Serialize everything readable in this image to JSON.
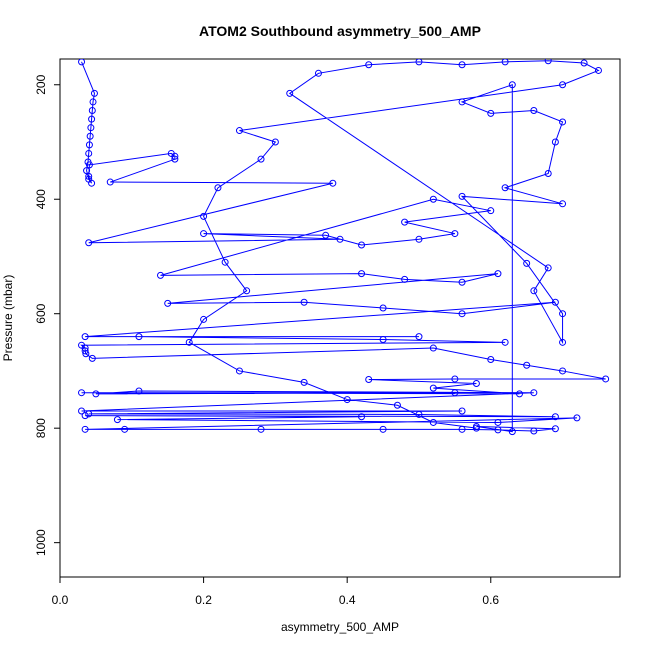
{
  "chart_data": {
    "type": "scatter",
    "title": "ATOM2 Southbound asymmetry_500_AMP",
    "xlabel": "asymmetry_500_AMP",
    "ylabel": "Pressure (mbar)",
    "xlim": [
      0.0,
      0.78
    ],
    "ylim": [
      1060,
      155
    ],
    "y_reversed": true,
    "x_ticks": [
      0.0,
      0.2,
      0.4,
      0.6
    ],
    "x_tick_labels": [
      "0.0",
      "0.2",
      "0.4",
      "0.6"
    ],
    "y_ticks": [
      200,
      400,
      600,
      800,
      1000
    ],
    "y_tick_labels": [
      "200",
      "400",
      "600",
      "800",
      "1000"
    ],
    "grid": false,
    "legend": "none",
    "color": "#0000ff",
    "marker": "open-circle",
    "lines_connect_points": true,
    "series": [
      {
        "points": [
          [
            0.03,
            160
          ],
          [
            0.048,
            215
          ],
          [
            0.046,
            230
          ],
          [
            0.045,
            245
          ],
          [
            0.044,
            260
          ],
          [
            0.043,
            275
          ],
          [
            0.042,
            290
          ],
          [
            0.041,
            305
          ],
          [
            0.04,
            320
          ],
          [
            0.039,
            335
          ],
          [
            0.037,
            350
          ],
          [
            0.04,
            365
          ],
          [
            0.044,
            372
          ],
          [
            0.04,
            360
          ],
          [
            0.041,
            340
          ],
          [
            0.155,
            320
          ],
          [
            0.16,
            325
          ],
          [
            0.16,
            330
          ],
          [
            0.07,
            370
          ],
          [
            0.38,
            372
          ],
          [
            0.04,
            476
          ],
          [
            0.39,
            470
          ],
          [
            0.2,
            460
          ],
          [
            0.37,
            463
          ],
          [
            0.42,
            480
          ],
          [
            0.5,
            470
          ],
          [
            0.55,
            460
          ],
          [
            0.48,
            440
          ],
          [
            0.6,
            420
          ],
          [
            0.52,
            400
          ],
          [
            0.14,
            533
          ],
          [
            0.42,
            530
          ],
          [
            0.48,
            540
          ],
          [
            0.56,
            545
          ],
          [
            0.61,
            530
          ],
          [
            0.15,
            582
          ],
          [
            0.34,
            580
          ],
          [
            0.45,
            590
          ],
          [
            0.56,
            600
          ],
          [
            0.69,
            580
          ],
          [
            0.035,
            640
          ],
          [
            0.5,
            640
          ],
          [
            0.11,
            640
          ],
          [
            0.45,
            645
          ],
          [
            0.62,
            650
          ],
          [
            0.03,
            655
          ],
          [
            0.035,
            660
          ],
          [
            0.035,
            665
          ],
          [
            0.036,
            670
          ],
          [
            0.045,
            678
          ],
          [
            0.52,
            660
          ],
          [
            0.6,
            680
          ],
          [
            0.65,
            690
          ],
          [
            0.7,
            700
          ],
          [
            0.76,
            714
          ],
          [
            0.55,
            714
          ],
          [
            0.43,
            715
          ],
          [
            0.58,
            722
          ],
          [
            0.52,
            730
          ],
          [
            0.64,
            740
          ],
          [
            0.03,
            738
          ],
          [
            0.55,
            738
          ],
          [
            0.05,
            740
          ],
          [
            0.11,
            735
          ],
          [
            0.66,
            738
          ],
          [
            0.03,
            770
          ],
          [
            0.56,
            770
          ],
          [
            0.04,
            775
          ],
          [
            0.5,
            776
          ],
          [
            0.69,
            780
          ],
          [
            0.035,
            778
          ],
          [
            0.42,
            780
          ],
          [
            0.08,
            785
          ],
          [
            0.61,
            790
          ],
          [
            0.72,
            782
          ],
          [
            0.035,
            802
          ],
          [
            0.09,
            802
          ],
          [
            0.28,
            802
          ],
          [
            0.45,
            802
          ],
          [
            0.56,
            802
          ],
          [
            0.61,
            803
          ],
          [
            0.66,
            805
          ],
          [
            0.69,
            801
          ],
          [
            0.58,
            797
          ],
          [
            0.63,
            806
          ],
          [
            0.63,
            200
          ],
          [
            0.56,
            230
          ],
          [
            0.6,
            250
          ],
          [
            0.66,
            245
          ],
          [
            0.7,
            265
          ],
          [
            0.69,
            300
          ],
          [
            0.68,
            355
          ],
          [
            0.62,
            380
          ],
          [
            0.7,
            408
          ],
          [
            0.56,
            395
          ],
          [
            0.65,
            512
          ],
          [
            0.7,
            600
          ],
          [
            0.7,
            650
          ],
          [
            0.66,
            560
          ],
          [
            0.68,
            520
          ],
          [
            0.32,
            215
          ],
          [
            0.36,
            180
          ],
          [
            0.43,
            165
          ],
          [
            0.5,
            160
          ],
          [
            0.56,
            165
          ],
          [
            0.62,
            160
          ],
          [
            0.68,
            158
          ],
          [
            0.73,
            162
          ],
          [
            0.75,
            175
          ],
          [
            0.7,
            200
          ],
          [
            0.25,
            280
          ],
          [
            0.3,
            300
          ],
          [
            0.28,
            330
          ],
          [
            0.22,
            380
          ],
          [
            0.2,
            430
          ],
          [
            0.23,
            510
          ],
          [
            0.26,
            560
          ],
          [
            0.2,
            610
          ],
          [
            0.18,
            650
          ],
          [
            0.25,
            700
          ],
          [
            0.34,
            720
          ],
          [
            0.4,
            750
          ],
          [
            0.47,
            760
          ],
          [
            0.52,
            790
          ],
          [
            0.58,
            800
          ]
        ]
      }
    ]
  }
}
